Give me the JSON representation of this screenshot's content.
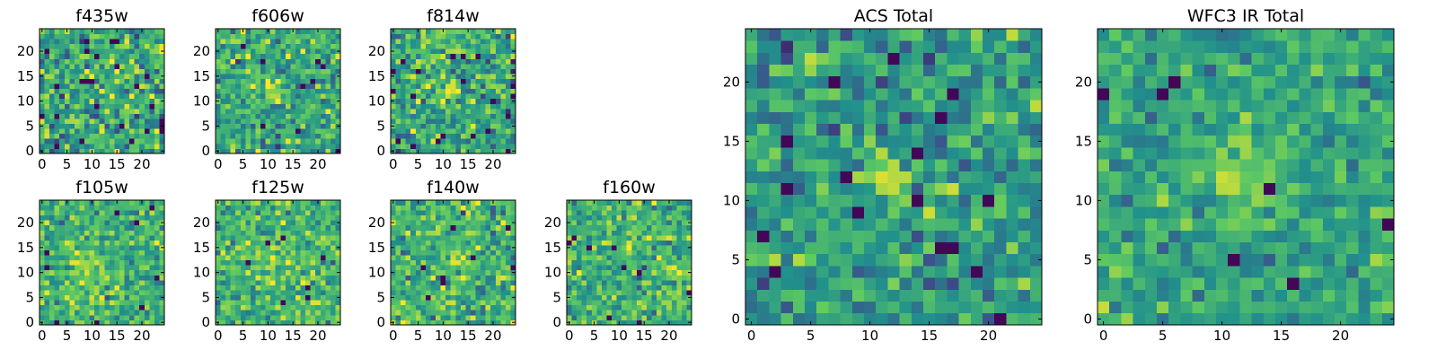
{
  "colormap": {
    "name": "viridis",
    "stops": [
      "#440154",
      "#3b528b",
      "#21918c",
      "#5ec962",
      "#fde725"
    ]
  },
  "chart_data": [
    {
      "type": "heatmap",
      "title": "f435w",
      "size": 25,
      "seed": 11,
      "xticks": [
        0,
        5,
        10,
        15,
        20
      ],
      "yticks": [
        0,
        5,
        10,
        15,
        20
      ],
      "xlim": [
        -0.5,
        24.5
      ],
      "ylim": [
        -0.5,
        24.5
      ],
      "value_range": [
        0,
        1
      ],
      "source_peak": {
        "x": 12,
        "y": 12,
        "width": 1.8,
        "amplitude": 0.05
      },
      "noise_level": 0.17,
      "outlier_fraction": 0.03,
      "background": 0.6
    },
    {
      "type": "heatmap",
      "title": "f606w",
      "size": 25,
      "seed": 22,
      "xticks": [
        0,
        5,
        10,
        15,
        20
      ],
      "yticks": [
        0,
        5,
        10,
        15,
        20
      ],
      "xlim": [
        -0.5,
        24.5
      ],
      "ylim": [
        -0.5,
        24.5
      ],
      "value_range": [
        0,
        1
      ],
      "source_peak": {
        "x": 11,
        "y": 12,
        "width": 1.6,
        "amplitude": 0.25
      },
      "noise_level": 0.15,
      "outlier_fraction": 0.02,
      "background": 0.6
    },
    {
      "type": "heatmap",
      "title": "f814w",
      "size": 25,
      "seed": 33,
      "xticks": [
        0,
        5,
        10,
        15,
        20
      ],
      "yticks": [
        0,
        5,
        10,
        15,
        20
      ],
      "xlim": [
        -0.5,
        24.5
      ],
      "ylim": [
        -0.5,
        24.5
      ],
      "value_range": [
        0,
        1
      ],
      "source_peak": {
        "x": 11,
        "y": 12,
        "width": 1.6,
        "amplitude": 0.2
      },
      "noise_level": 0.16,
      "outlier_fraction": 0.02,
      "background": 0.6
    },
    {
      "type": "heatmap",
      "title": "f105w",
      "size": 25,
      "seed": 44,
      "xticks": [
        0,
        5,
        10,
        15,
        20
      ],
      "yticks": [
        0,
        5,
        10,
        15,
        20
      ],
      "xlim": [
        -0.5,
        24.5
      ],
      "ylim": [
        -0.5,
        24.5
      ],
      "value_range": [
        0,
        1
      ],
      "source_peak": {
        "x": 10,
        "y": 11,
        "width": 2.5,
        "amplitude": 0.2
      },
      "noise_level": 0.13,
      "outlier_fraction": 0.015,
      "background": 0.65
    },
    {
      "type": "heatmap",
      "title": "f125w",
      "size": 25,
      "seed": 55,
      "xticks": [
        0,
        5,
        10,
        15,
        20
      ],
      "yticks": [
        0,
        5,
        10,
        15,
        20
      ],
      "xlim": [
        -0.5,
        24.5
      ],
      "ylim": [
        -0.5,
        24.5
      ],
      "value_range": [
        0,
        1
      ],
      "source_peak": {
        "x": 11,
        "y": 12,
        "width": 2.5,
        "amplitude": 0.15
      },
      "noise_level": 0.14,
      "outlier_fraction": 0.015,
      "background": 0.65
    },
    {
      "type": "heatmap",
      "title": "f140w",
      "size": 25,
      "seed": 66,
      "xticks": [
        0,
        5,
        10,
        15,
        20
      ],
      "yticks": [
        0,
        5,
        10,
        15,
        20
      ],
      "xlim": [
        -0.5,
        24.5
      ],
      "ylim": [
        -0.5,
        24.5
      ],
      "value_range": [
        0,
        1
      ],
      "source_peak": {
        "x": 12,
        "y": 12,
        "width": 2.5,
        "amplitude": 0.15
      },
      "noise_level": 0.14,
      "outlier_fraction": 0.015,
      "background": 0.65
    },
    {
      "type": "heatmap",
      "title": "f160w",
      "size": 25,
      "seed": 77,
      "xticks": [
        0,
        5,
        10,
        15,
        20
      ],
      "yticks": [
        0,
        5,
        10,
        15,
        20
      ],
      "xlim": [
        -0.5,
        24.5
      ],
      "ylim": [
        -0.5,
        24.5
      ],
      "value_range": [
        0,
        1
      ],
      "source_peak": {
        "x": 14,
        "y": 16,
        "width": 2.5,
        "amplitude": 0.15
      },
      "noise_level": 0.14,
      "outlier_fraction": 0.015,
      "background": 0.65
    },
    {
      "type": "heatmap",
      "title": "ACS Total",
      "size": 25,
      "seed": 88,
      "xticks": [
        0,
        5,
        10,
        15,
        20
      ],
      "yticks": [
        0,
        5,
        10,
        15,
        20
      ],
      "xlim": [
        -0.5,
        24.5
      ],
      "ylim": [
        -0.5,
        24.5
      ],
      "value_range": [
        0,
        1
      ],
      "source_peak": {
        "x": 11.5,
        "y": 11.5,
        "width": 1.4,
        "amplitude": 0.35
      },
      "noise_level": 0.14,
      "outlier_fraction": 0.03,
      "background": 0.55
    },
    {
      "type": "heatmap",
      "title": "WFC3 IR Total",
      "size": 25,
      "seed": 99,
      "xticks": [
        0,
        5,
        10,
        15,
        20
      ],
      "yticks": [
        0,
        5,
        10,
        15,
        20
      ],
      "xlim": [
        -0.5,
        24.5
      ],
      "ylim": [
        -0.5,
        24.5
      ],
      "value_range": [
        0,
        1
      ],
      "source_peak": {
        "x": 12,
        "y": 12,
        "width": 2.2,
        "amplitude": 0.3
      },
      "noise_level": 0.11,
      "outlier_fraction": 0.015,
      "background": 0.58
    }
  ]
}
